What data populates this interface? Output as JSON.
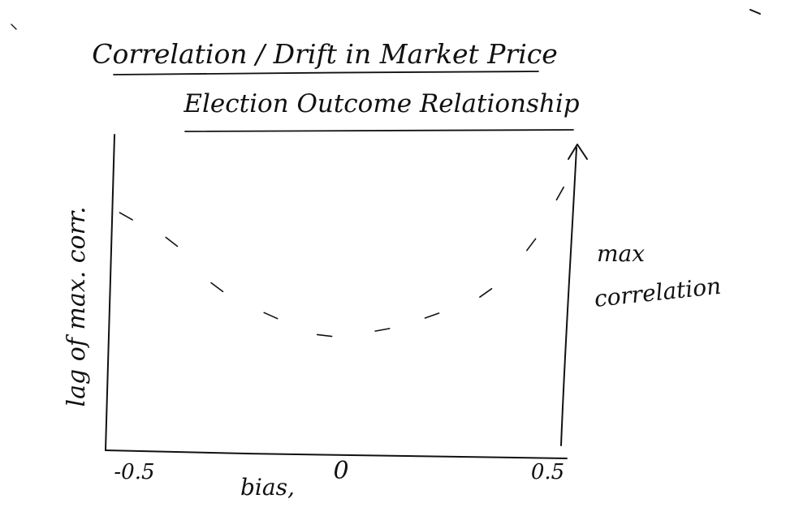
{
  "chart_data": {
    "type": "line",
    "title": "Correlation / Drift in Market Price",
    "subtitle": "Election Outcome Relationship",
    "xlabel": "bias,",
    "ylabel": "lag of max. corr.",
    "y2label_line1": "max",
    "y2label_line2": "correlation",
    "x_ticks": [
      {
        "value": -0.5,
        "label": "-0.5"
      },
      {
        "value": 0,
        "label": "0"
      },
      {
        "value": 0.5,
        "label": "0.5"
      }
    ],
    "xlim": [
      -0.55,
      0.55
    ],
    "ylim": [
      0,
      1
    ],
    "grid": false,
    "series": [
      {
        "style": "dashed",
        "x": [
          -0.52,
          -0.41,
          -0.3,
          -0.17,
          -0.04,
          0.1,
          0.22,
          0.35,
          0.46,
          0.53
        ],
        "y": [
          0.81,
          0.72,
          0.56,
          0.46,
          0.39,
          0.41,
          0.46,
          0.54,
          0.71,
          0.89
        ]
      }
    ]
  }
}
